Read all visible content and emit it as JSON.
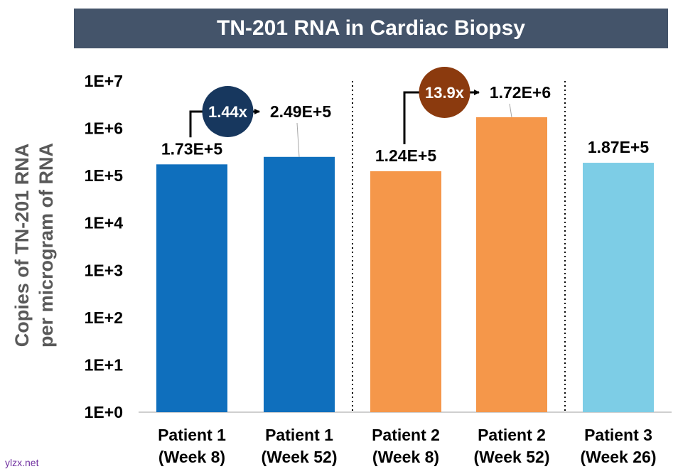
{
  "chart_data": {
    "type": "bar",
    "title": "TN-201 RNA in Cardiac Biopsy",
    "ylabel": [
      "Copies of TN-201 RNA",
      "per microgram of RNA"
    ],
    "xlabel": "",
    "yscale": "log",
    "ylim": [
      1,
      10000000
    ],
    "yticks": [
      {
        "value": 1,
        "label": "1E+0"
      },
      {
        "value": 10,
        "label": "1E+1"
      },
      {
        "value": 100,
        "label": "1E+2"
      },
      {
        "value": 1000,
        "label": "1E+3"
      },
      {
        "value": 10000,
        "label": "1E+4"
      },
      {
        "value": 100000,
        "label": "1E+5"
      },
      {
        "value": 1000000,
        "label": "1E+6"
      },
      {
        "value": 10000000,
        "label": "1E+7"
      }
    ],
    "bars": [
      {
        "line1": "Patient 1",
        "line2": "(Week 8)",
        "value": 173000,
        "label": "1.73E+5",
        "color": "#0f6fbd"
      },
      {
        "line1": "Patient 1",
        "line2": "(Week 52)",
        "value": 249000,
        "label": "2.49E+5",
        "color": "#0f6fbd"
      },
      {
        "line1": "Patient 2",
        "line2": "(Week 8)",
        "value": 124000,
        "label": "1.24E+5",
        "color": "#f5974a"
      },
      {
        "line1": "Patient 2",
        "line2": "(Week 52)",
        "value": 1720000,
        "label": "1.72E+6",
        "color": "#f5974a"
      },
      {
        "line1": "Patient 3",
        "line2": "(Week 26)",
        "value": 187000,
        "label": "1.87E+5",
        "color": "#7dcde6"
      }
    ],
    "fold_changes": [
      {
        "label": "1.44x",
        "from_bar": 0,
        "to_bar": 1,
        "color": "#17375e"
      },
      {
        "label": "13.9x",
        "from_bar": 2,
        "to_bar": 3,
        "color": "#8b3a0e"
      }
    ],
    "group_separators_after_bar": [
      1,
      3
    ]
  },
  "watermark": "ylzx.net"
}
